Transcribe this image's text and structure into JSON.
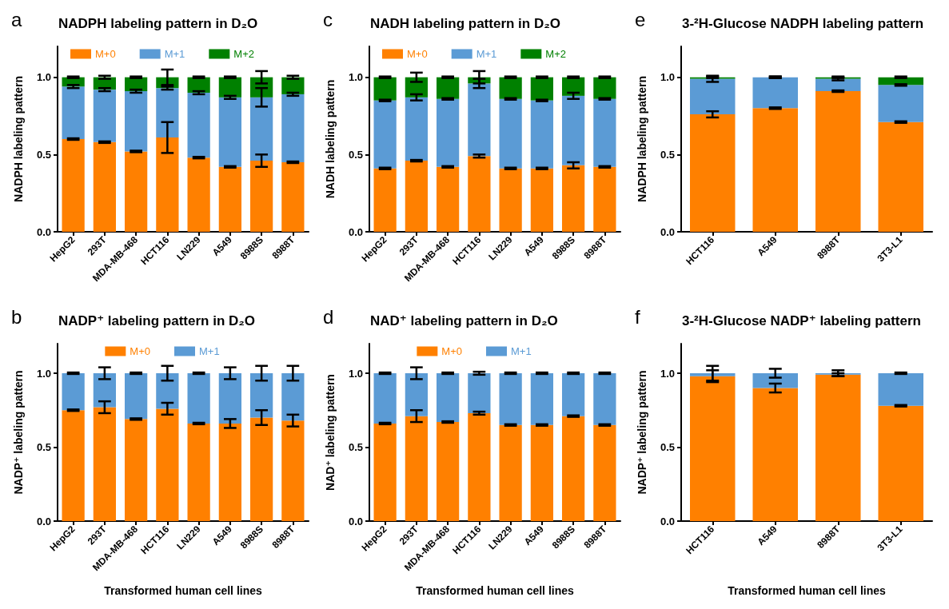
{
  "chart_data": [
    {
      "type": "bar",
      "stacked": true,
      "title": "NADPH labeling pattern in D₂O",
      "ylabel": "NADPH labeling pattern",
      "annotations": [
        "a"
      ],
      "categories": [
        "HepG2",
        "293T",
        "MDA-MB-468",
        "HCT116",
        "LN229",
        "A549",
        "8988S",
        "8988T"
      ],
      "legend": "top",
      "grid": false,
      "ylim": [
        0,
        1.2
      ],
      "yticks": [
        {
          "value": 0,
          "label": "0.0"
        },
        {
          "value": 0.5,
          "label": "0.5"
        },
        {
          "value": 1,
          "label": "1.0"
        }
      ],
      "series": [
        {
          "name": "M+0",
          "color": "#ff8000",
          "values": [
            0.6,
            0.58,
            0.52,
            0.61,
            0.48,
            0.42,
            0.46,
            0.45
          ],
          "errors": [
            0.005,
            0.005,
            0.005,
            0.1,
            0.005,
            0.005,
            0.04,
            0.005
          ]
        },
        {
          "name": "M+1",
          "color": "#5b9bd5",
          "values": [
            0.34,
            0.34,
            0.39,
            0.32,
            0.42,
            0.45,
            0.41,
            0.44
          ],
          "errors": [
            0.01,
            0.01,
            0.01,
            0.01,
            0.01,
            0.01,
            0.06,
            0.01
          ]
        },
        {
          "name": "M+2",
          "color": "#008000",
          "values": [
            0.06,
            0.08,
            0.09,
            0.07,
            0.1,
            0.13,
            0.13,
            0.11
          ],
          "errors": [
            0.005,
            0.01,
            0.005,
            0.05,
            0.005,
            0.005,
            0.04,
            0.01
          ]
        }
      ]
    },
    {
      "type": "bar",
      "stacked": true,
      "title": "NADH labeling pattern in D₂O",
      "ylabel": "NADH labeling pattern",
      "annotations": [
        "c"
      ],
      "categories": [
        "HepG2",
        "293T",
        "MDA-MB-468",
        "HCT116",
        "LN229",
        "A549",
        "8988S",
        "8988T"
      ],
      "legend": "top",
      "grid": false,
      "ylim": [
        0,
        1.2
      ],
      "yticks": [
        {
          "value": 0,
          "label": "0.0"
        },
        {
          "value": 0.5,
          "label": "0.5"
        },
        {
          "value": 1,
          "label": "1.0"
        }
      ],
      "series": [
        {
          "name": "M+0",
          "color": "#ff8000",
          "values": [
            0.41,
            0.46,
            0.42,
            0.49,
            0.41,
            0.41,
            0.43,
            0.42
          ],
          "errors": [
            0.005,
            0.005,
            0.005,
            0.01,
            0.005,
            0.005,
            0.02,
            0.005
          ]
        },
        {
          "name": "M+1",
          "color": "#5b9bd5",
          "values": [
            0.44,
            0.41,
            0.44,
            0.47,
            0.45,
            0.44,
            0.45,
            0.44
          ],
          "errors": [
            0.005,
            0.02,
            0.005,
            0.03,
            0.005,
            0.005,
            0.02,
            0.005
          ]
        },
        {
          "name": "M+2",
          "color": "#008000",
          "values": [
            0.15,
            0.13,
            0.14,
            0.04,
            0.14,
            0.15,
            0.12,
            0.14
          ],
          "errors": [
            0.005,
            0.03,
            0.005,
            0.04,
            0.005,
            0.005,
            0.005,
            0.005
          ]
        }
      ]
    },
    {
      "type": "bar",
      "stacked": true,
      "title": "3-²H-Glucose NADPH labeling pattern",
      "ylabel": "NADPH labeling pattern",
      "annotations": [
        "e"
      ],
      "categories": [
        "HCT116",
        "A549",
        "8988T",
        "3T3-L1"
      ],
      "legend": false,
      "grid": false,
      "ylim": [
        0,
        1.2
      ],
      "yticks": [
        {
          "value": 0,
          "label": "0.0"
        },
        {
          "value": 0.5,
          "label": "0.5"
        },
        {
          "value": 1,
          "label": "1.0"
        }
      ],
      "series": [
        {
          "color": "#ff8000",
          "values": [
            0.76,
            0.8,
            0.91,
            0.71
          ],
          "errors": [
            0.02,
            0.005,
            0.005,
            0.005
          ]
        },
        {
          "color": "#5b9bd5",
          "values": [
            0.23,
            0.2,
            0.08,
            0.24
          ],
          "errors": [
            0.02,
            0.005,
            0.01,
            0.005
          ]
        },
        {
          "color": "#008000",
          "values": [
            0.01,
            0.0,
            0.01,
            0.05
          ],
          "errors": [
            0.005,
            0.005,
            0.005,
            0.005
          ]
        }
      ]
    },
    {
      "type": "bar",
      "stacked": true,
      "title": "NADP⁺ labeling pattern in D₂O",
      "ylabel": "NADP⁺ labeling pattern",
      "xlabel": "Transformed human cell lines",
      "annotations": [
        "b"
      ],
      "categories": [
        "HepG2",
        "293T",
        "MDA-MB-468",
        "HCT116",
        "LN229",
        "A549",
        "8988S",
        "8988T"
      ],
      "legend": "top",
      "grid": false,
      "ylim": [
        0,
        1.2
      ],
      "yticks": [
        {
          "value": 0,
          "label": "0.0"
        },
        {
          "value": 0.5,
          "label": "0.5"
        },
        {
          "value": 1,
          "label": "1.0"
        }
      ],
      "series": [
        {
          "name": "M+0",
          "color": "#ff8000",
          "values": [
            0.75,
            0.77,
            0.69,
            0.76,
            0.66,
            0.66,
            0.7,
            0.68
          ],
          "errors": [
            0.005,
            0.04,
            0.005,
            0.04,
            0.005,
            0.03,
            0.05,
            0.04
          ]
        },
        {
          "name": "M+1",
          "color": "#5b9bd5",
          "values": [
            0.25,
            0.23,
            0.31,
            0.24,
            0.34,
            0.34,
            0.3,
            0.32
          ],
          "errors": [
            0.005,
            0.04,
            0.005,
            0.05,
            0.005,
            0.04,
            0.05,
            0.05
          ]
        }
      ]
    },
    {
      "type": "bar",
      "stacked": true,
      "title": "NAD⁺ labeling pattern in D₂O",
      "ylabel": "NAD⁺ labeling pattern",
      "xlabel": "Transformed human cell lines",
      "annotations": [
        "d"
      ],
      "categories": [
        "HepG2",
        "293T",
        "MDA-MB-468",
        "HCT116",
        "LN229",
        "A549",
        "8988S",
        "8988T"
      ],
      "legend": "top",
      "grid": false,
      "ylim": [
        0,
        1.2
      ],
      "yticks": [
        {
          "value": 0,
          "label": "0.0"
        },
        {
          "value": 0.5,
          "label": "0.5"
        },
        {
          "value": 1,
          "label": "1.0"
        }
      ],
      "series": [
        {
          "name": "M+0",
          "color": "#ff8000",
          "values": [
            0.66,
            0.71,
            0.67,
            0.73,
            0.65,
            0.65,
            0.71,
            0.65
          ],
          "errors": [
            0.005,
            0.04,
            0.005,
            0.01,
            0.005,
            0.005,
            0.005,
            0.005
          ]
        },
        {
          "name": "M+1",
          "color": "#5b9bd5",
          "values": [
            0.34,
            0.29,
            0.33,
            0.27,
            0.35,
            0.35,
            0.29,
            0.35
          ],
          "errors": [
            0.005,
            0.04,
            0.005,
            0.01,
            0.005,
            0.005,
            0.005,
            0.005
          ]
        }
      ]
    },
    {
      "type": "bar",
      "stacked": true,
      "title": "3-²H-Glucose NADP⁺ labeling pattern",
      "ylabel": "NADP⁺ labeling pattern",
      "xlabel": "Transformed human cell lines",
      "annotations": [
        "f"
      ],
      "categories": [
        "HCT116",
        "A549",
        "8988T",
        "3T3-L1"
      ],
      "legend": false,
      "grid": false,
      "ylim": [
        0,
        1.2
      ],
      "yticks": [
        {
          "value": 0,
          "label": "0.0"
        },
        {
          "value": 0.5,
          "label": "0.5"
        },
        {
          "value": 1,
          "label": "1.0"
        }
      ],
      "series": [
        {
          "color": "#ff8000",
          "values": [
            0.98,
            0.9,
            0.99,
            0.78
          ],
          "errors": [
            0.04,
            0.03,
            0.01,
            0.005
          ]
        },
        {
          "color": "#5b9bd5",
          "values": [
            0.02,
            0.1,
            0.01,
            0.22
          ],
          "errors": [
            0.05,
            0.03,
            0.02,
            0.005
          ]
        }
      ]
    }
  ]
}
